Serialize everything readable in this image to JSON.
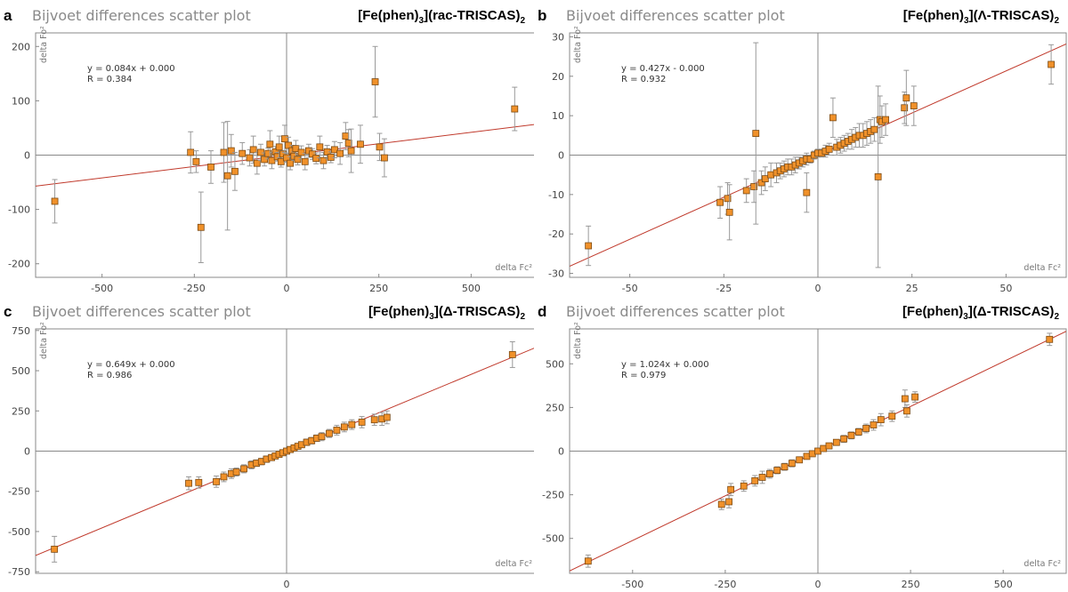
{
  "colors": {
    "point": "#f0912a",
    "point_edge": "#7a4a14",
    "fit": "#c0392b",
    "errbar": "#999999",
    "axis": "#888888"
  },
  "chart_data": [
    {
      "type": "scatter",
      "panel_label": "a",
      "title": "Bijvoet differences scatter plot",
      "compound": "[Fe(phen)3](rac-TRISCAS)2",
      "compound_parts": [
        "[Fe(phen)",
        "3",
        "](rac-TRISCAS)",
        "2"
      ],
      "xlabel": "delta Fc²",
      "ylabel": "delta Fo²",
      "equation": "y = 0.084x + 0.000",
      "r_text": "R = 0.384",
      "fit": {
        "slope": 0.084,
        "intercept": 0.0
      },
      "xlim": [
        -680,
        680
      ],
      "ylim": [
        -225,
        225
      ],
      "xticks": [
        "-500",
        "-250",
        "0",
        "250",
        "500"
      ],
      "xtick_values": [
        -500,
        -250,
        0,
        250,
        500
      ],
      "yticks": [
        "200",
        "100",
        "0",
        "-100",
        "-200"
      ],
      "ytick_values": [
        200,
        100,
        0,
        -100,
        -200
      ],
      "points": [
        [
          -628,
          -85,
          40
        ],
        [
          -260,
          5,
          38
        ],
        [
          -245,
          -12,
          20
        ],
        [
          -232,
          -133,
          65
        ],
        [
          -205,
          -22,
          30
        ],
        [
          -170,
          5,
          55
        ],
        [
          -160,
          -38,
          100
        ],
        [
          -150,
          8,
          30
        ],
        [
          -140,
          -30,
          35
        ],
        [
          -120,
          3,
          20
        ],
        [
          -100,
          -5,
          15
        ],
        [
          -90,
          10,
          25
        ],
        [
          -80,
          -15,
          20
        ],
        [
          -70,
          5,
          15
        ],
        [
          -60,
          -8,
          12
        ],
        [
          -50,
          3,
          10
        ],
        [
          -45,
          20,
          25
        ],
        [
          -40,
          -10,
          15
        ],
        [
          -30,
          6,
          10
        ],
        [
          -25,
          -3,
          8
        ],
        [
          -20,
          15,
          20
        ],
        [
          -15,
          -12,
          10
        ],
        [
          -10,
          2,
          6
        ],
        [
          -5,
          30,
          25
        ],
        [
          0,
          -5,
          8
        ],
        [
          5,
          18,
          15
        ],
        [
          10,
          -15,
          12
        ],
        [
          15,
          8,
          10
        ],
        [
          20,
          -2,
          8
        ],
        [
          25,
          12,
          15
        ],
        [
          30,
          -8,
          10
        ],
        [
          40,
          5,
          12
        ],
        [
          50,
          -12,
          15
        ],
        [
          60,
          8,
          12
        ],
        [
          70,
          2,
          10
        ],
        [
          80,
          -6,
          10
        ],
        [
          90,
          15,
          20
        ],
        [
          100,
          -10,
          15
        ],
        [
          110,
          6,
          12
        ],
        [
          120,
          -4,
          10
        ],
        [
          130,
          10,
          15
        ],
        [
          145,
          3,
          20
        ],
        [
          160,
          35,
          25
        ],
        [
          168,
          22,
          25
        ],
        [
          175,
          8,
          40
        ],
        [
          200,
          20,
          35
        ],
        [
          240,
          135,
          65
        ],
        [
          252,
          15,
          25
        ],
        [
          265,
          -5,
          35
        ],
        [
          618,
          85,
          40
        ]
      ]
    },
    {
      "type": "scatter",
      "panel_label": "b",
      "title": "Bijvoet differences scatter plot",
      "compound": "[Fe(phen)3](Λ-TRISCAS)2",
      "compound_parts": [
        "[Fe(phen)",
        "3",
        "](Λ-TRISCAS)",
        "2"
      ],
      "xlabel": "delta Fc²",
      "ylabel": "delta Fo²",
      "equation": "y = 0.427x - 0.000",
      "r_text": "R = 0.932",
      "fit": {
        "slope": 0.427,
        "intercept": 0.0
      },
      "xlim": [
        -66,
        66
      ],
      "ylim": [
        -31,
        31
      ],
      "xticks": [
        "-50",
        "-25",
        "0",
        "25",
        "50"
      ],
      "xtick_values": [
        -50,
        -25,
        0,
        25,
        50
      ],
      "yticks": [
        "30",
        "20",
        "10",
        "0",
        "-10",
        "-20",
        "-30"
      ],
      "ytick_values": [
        30,
        20,
        10,
        0,
        -10,
        -20,
        -30
      ],
      "points": [
        [
          -61,
          -23,
          5
        ],
        [
          -26,
          -12,
          4
        ],
        [
          -24,
          -11,
          4
        ],
        [
          -23.5,
          -14.5,
          7
        ],
        [
          -19,
          -9,
          3
        ],
        [
          -17,
          -8,
          4
        ],
        [
          -16.5,
          5.5,
          23
        ],
        [
          -15,
          -7,
          3
        ],
        [
          -14,
          -6,
          3
        ],
        [
          -12.5,
          -5,
          3
        ],
        [
          -11,
          -4.5,
          2.5
        ],
        [
          -10,
          -4,
          2
        ],
        [
          -9,
          -3.5,
          2
        ],
        [
          -8,
          -3,
          2
        ],
        [
          -7,
          -3,
          2
        ],
        [
          -6,
          -2.5,
          2
        ],
        [
          -5,
          -2,
          1.5
        ],
        [
          -4,
          -1.5,
          1.5
        ],
        [
          -3,
          -1,
          1.5
        ],
        [
          -2,
          -1,
          1
        ],
        [
          -1,
          0,
          1
        ],
        [
          0,
          0.5,
          1
        ],
        [
          1,
          0.5,
          1
        ],
        [
          2,
          1,
          1.5
        ],
        [
          3,
          1.5,
          1.5
        ],
        [
          4,
          9.5,
          5
        ],
        [
          -3,
          -9.5,
          5
        ],
        [
          5,
          2,
          2
        ],
        [
          6,
          2.5,
          2
        ],
        [
          7,
          3,
          2
        ],
        [
          8,
          3.5,
          2
        ],
        [
          9,
          4,
          2.5
        ],
        [
          10,
          4.5,
          2.5
        ],
        [
          11,
          5,
          3
        ],
        [
          12,
          5,
          3
        ],
        [
          13,
          5.5,
          3
        ],
        [
          14,
          6,
          3
        ],
        [
          15,
          6.5,
          3
        ],
        [
          16,
          -5.5,
          23
        ],
        [
          16.5,
          9,
          6
        ],
        [
          17,
          8.5,
          4
        ],
        [
          18,
          9,
          4
        ],
        [
          23,
          12,
          4
        ],
        [
          23.5,
          14.5,
          7
        ],
        [
          25.5,
          12.5,
          5
        ],
        [
          62,
          23,
          5
        ]
      ]
    },
    {
      "type": "scatter",
      "panel_label": "c",
      "title": "Bijvoet differences scatter plot",
      "compound": "[Fe(phen)3](Δ-TRISCAS)2",
      "compound_parts": [
        "[Fe(phen)",
        "3",
        "](Δ-TRISCAS)",
        "2"
      ],
      "xlabel": "delta Fc²",
      "ylabel": "delta Fo²",
      "equation": "y = 0.649x + 0.000",
      "r_text": "R = 0.986",
      "fit": {
        "slope": 0.649,
        "intercept": 0.0
      },
      "xlim": [
        -1000,
        1000
      ],
      "ylim": [
        -760,
        760
      ],
      "xticks": [
        "0"
      ],
      "xtick_values": [
        0
      ],
      "yticks": [
        "750",
        "500",
        "250",
        "0",
        "-250",
        "-500",
        "-750"
      ],
      "ytick_values": [
        750,
        500,
        250,
        0,
        -250,
        -500,
        -750
      ],
      "points": [
        [
          -925,
          -610,
          80
        ],
        [
          -390,
          -200,
          40
        ],
        [
          -350,
          -195,
          35
        ],
        [
          -280,
          -190,
          35
        ],
        [
          -250,
          -160,
          30
        ],
        [
          -220,
          -140,
          30
        ],
        [
          -200,
          -130,
          25
        ],
        [
          -170,
          -110,
          25
        ],
        [
          -140,
          -85,
          25
        ],
        [
          -120,
          -75,
          20
        ],
        [
          -100,
          -65,
          20
        ],
        [
          -80,
          -50,
          20
        ],
        [
          -60,
          -40,
          15
        ],
        [
          -45,
          -30,
          15
        ],
        [
          -30,
          -20,
          15
        ],
        [
          -15,
          -10,
          12
        ],
        [
          0,
          0,
          12
        ],
        [
          15,
          10,
          12
        ],
        [
          30,
          20,
          12
        ],
        [
          45,
          30,
          15
        ],
        [
          60,
          40,
          15
        ],
        [
          80,
          55,
          20
        ],
        [
          100,
          65,
          20
        ],
        [
          120,
          80,
          20
        ],
        [
          140,
          90,
          25
        ],
        [
          170,
          110,
          25
        ],
        [
          200,
          130,
          30
        ],
        [
          230,
          150,
          30
        ],
        [
          260,
          165,
          30
        ],
        [
          300,
          180,
          35
        ],
        [
          350,
          195,
          35
        ],
        [
          380,
          200,
          40
        ],
        [
          400,
          210,
          40
        ],
        [
          900,
          600,
          80
        ]
      ]
    },
    {
      "type": "scatter",
      "panel_label": "d",
      "title": "Bijvoet differences scatter plot",
      "compound": "[Fe(phen)3](Δ-TRISCAS)2",
      "compound_parts": [
        "[Fe(phen)",
        "3",
        "](Δ-TRISCAS)",
        "2"
      ],
      "xlabel": "delta Fc²",
      "ylabel": "delta Fo²",
      "equation": "y = 1.024x + 0.000",
      "r_text": "R = 0.979",
      "fit": {
        "slope": 1.024,
        "intercept": 0.0
      },
      "xlim": [
        -670,
        670
      ],
      "ylim": [
        -700,
        700
      ],
      "xticks": [
        "-500",
        "-250",
        "0",
        "250",
        "500"
      ],
      "xtick_values": [
        -500,
        -250,
        0,
        250,
        500
      ],
      "yticks": [
        "500",
        "250",
        "0",
        "-250",
        "-500"
      ],
      "ytick_values": [
        500,
        250,
        0,
        -250,
        -500
      ],
      "points": [
        [
          -620,
          -630,
          35
        ],
        [
          -260,
          -305,
          30
        ],
        [
          -240,
          -290,
          35
        ],
        [
          -235,
          -220,
          35
        ],
        [
          -200,
          -200,
          30
        ],
        [
          -170,
          -170,
          30
        ],
        [
          -150,
          -150,
          35
        ],
        [
          -130,
          -130,
          25
        ],
        [
          -110,
          -110,
          20
        ],
        [
          -90,
          -90,
          20
        ],
        [
          -70,
          -70,
          20
        ],
        [
          -50,
          -50,
          15
        ],
        [
          -30,
          -30,
          15
        ],
        [
          -15,
          -15,
          12
        ],
        [
          0,
          0,
          12
        ],
        [
          15,
          15,
          12
        ],
        [
          30,
          30,
          15
        ],
        [
          50,
          50,
          15
        ],
        [
          70,
          70,
          20
        ],
        [
          90,
          90,
          20
        ],
        [
          110,
          110,
          20
        ],
        [
          130,
          130,
          25
        ],
        [
          150,
          150,
          30
        ],
        [
          170,
          180,
          35
        ],
        [
          200,
          200,
          30
        ],
        [
          235,
          300,
          50
        ],
        [
          240,
          230,
          35
        ],
        [
          262,
          310,
          30
        ],
        [
          625,
          640,
          35
        ]
      ]
    }
  ]
}
